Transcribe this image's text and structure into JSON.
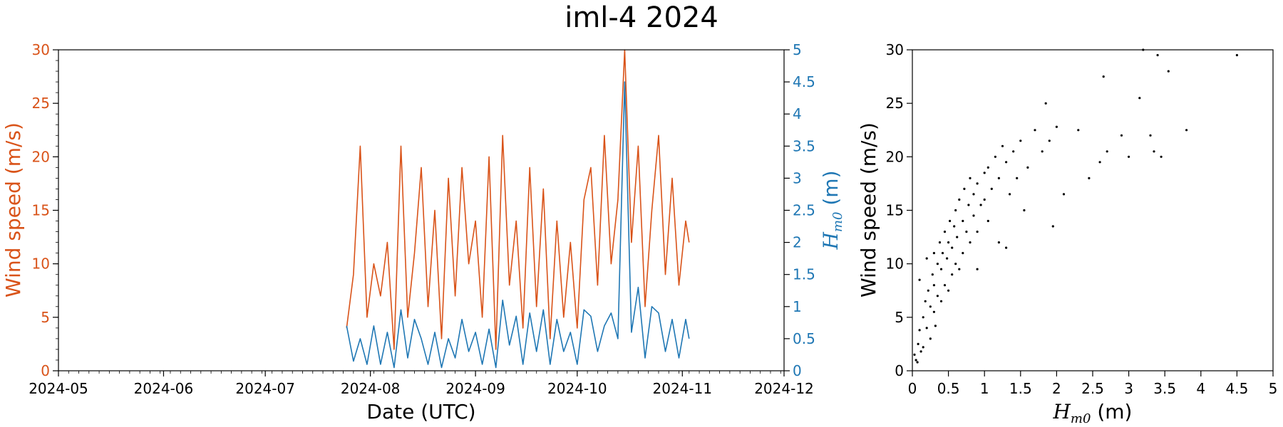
{
  "figure": {
    "title": "iml-4 2024"
  },
  "colors": {
    "wind": "#d95319",
    "hm0": "#1f77b4",
    "scatter": "#000000",
    "axes": "#000000"
  },
  "chart_data": [
    {
      "type": "line",
      "xlabel": "Date (UTC)",
      "ylabel": "Wind speed (m/s)",
      "y2label": "H_m0 (m)",
      "xlim": [
        "2024-05-01",
        "2024-12-01"
      ],
      "x_ticks": [
        "2024-05",
        "2024-06",
        "2024-07",
        "2024-08",
        "2024-09",
        "2024-10",
        "2024-11",
        "2024-12"
      ],
      "ylim": [
        0,
        30
      ],
      "y_ticks": [
        "0",
        "5",
        "10",
        "15",
        "20",
        "25",
        "30"
      ],
      "y2lim": [
        0,
        5
      ],
      "y2_ticks": [
        "0",
        "0.5",
        "1",
        "1.5",
        "2",
        "2.5",
        "3",
        "3.5",
        "4",
        "4.5",
        "5"
      ],
      "series": [
        {
          "axis": "left",
          "color": "#d95319",
          "points": [
            [
              "2024-07-25",
              4
            ],
            [
              "2024-07-27",
              9
            ],
            [
              "2024-07-29",
              21
            ],
            [
              "2024-07-31",
              5
            ],
            [
              "2024-08-02",
              10
            ],
            [
              "2024-08-04",
              7
            ],
            [
              "2024-08-06",
              12
            ],
            [
              "2024-08-08",
              2
            ],
            [
              "2024-08-10",
              21
            ],
            [
              "2024-08-12",
              5
            ],
            [
              "2024-08-14",
              11
            ],
            [
              "2024-08-16",
              19
            ],
            [
              "2024-08-18",
              6
            ],
            [
              "2024-08-20",
              15
            ],
            [
              "2024-08-22",
              3
            ],
            [
              "2024-08-24",
              18
            ],
            [
              "2024-08-26",
              7
            ],
            [
              "2024-08-28",
              19
            ],
            [
              "2024-08-30",
              10
            ],
            [
              "2024-09-01",
              14
            ],
            [
              "2024-09-03",
              5
            ],
            [
              "2024-09-05",
              20
            ],
            [
              "2024-09-07",
              2
            ],
            [
              "2024-09-09",
              22
            ],
            [
              "2024-09-11",
              8
            ],
            [
              "2024-09-13",
              14
            ],
            [
              "2024-09-15",
              4
            ],
            [
              "2024-09-17",
              19
            ],
            [
              "2024-09-19",
              6
            ],
            [
              "2024-09-21",
              17
            ],
            [
              "2024-09-23",
              3
            ],
            [
              "2024-09-25",
              14
            ],
            [
              "2024-09-27",
              5
            ],
            [
              "2024-09-29",
              12
            ],
            [
              "2024-10-01",
              4
            ],
            [
              "2024-10-03",
              16
            ],
            [
              "2024-10-05",
              19
            ],
            [
              "2024-10-07",
              8
            ],
            [
              "2024-10-09",
              22
            ],
            [
              "2024-10-11",
              10
            ],
            [
              "2024-10-13",
              16
            ],
            [
              "2024-10-15",
              30
            ],
            [
              "2024-10-17",
              12
            ],
            [
              "2024-10-19",
              21
            ],
            [
              "2024-10-21",
              6
            ],
            [
              "2024-10-23",
              15
            ],
            [
              "2024-10-25",
              22
            ],
            [
              "2024-10-27",
              9
            ],
            [
              "2024-10-29",
              18
            ],
            [
              "2024-10-31",
              8
            ],
            [
              "2024-11-02",
              14
            ],
            [
              "2024-11-03",
              12
            ]
          ]
        },
        {
          "axis": "right",
          "color": "#1f77b4",
          "points": [
            [
              "2024-07-25",
              0.7
            ],
            [
              "2024-07-27",
              0.15
            ],
            [
              "2024-07-29",
              0.5
            ],
            [
              "2024-07-31",
              0.1
            ],
            [
              "2024-08-02",
              0.7
            ],
            [
              "2024-08-04",
              0.1
            ],
            [
              "2024-08-06",
              0.6
            ],
            [
              "2024-08-08",
              0.05
            ],
            [
              "2024-08-10",
              0.95
            ],
            [
              "2024-08-12",
              0.2
            ],
            [
              "2024-08-14",
              0.8
            ],
            [
              "2024-08-16",
              0.5
            ],
            [
              "2024-08-18",
              0.1
            ],
            [
              "2024-08-20",
              0.6
            ],
            [
              "2024-08-22",
              0.05
            ],
            [
              "2024-08-24",
              0.5
            ],
            [
              "2024-08-26",
              0.2
            ],
            [
              "2024-08-28",
              0.8
            ],
            [
              "2024-08-30",
              0.3
            ],
            [
              "2024-09-01",
              0.6
            ],
            [
              "2024-09-03",
              0.1
            ],
            [
              "2024-09-05",
              0.65
            ],
            [
              "2024-09-07",
              0.05
            ],
            [
              "2024-09-09",
              1.1
            ],
            [
              "2024-09-11",
              0.4
            ],
            [
              "2024-09-13",
              0.85
            ],
            [
              "2024-09-15",
              0.1
            ],
            [
              "2024-09-17",
              0.9
            ],
            [
              "2024-09-19",
              0.3
            ],
            [
              "2024-09-21",
              0.95
            ],
            [
              "2024-09-23",
              0.1
            ],
            [
              "2024-09-25",
              0.8
            ],
            [
              "2024-09-27",
              0.3
            ],
            [
              "2024-09-29",
              0.6
            ],
            [
              "2024-10-01",
              0.1
            ],
            [
              "2024-10-03",
              0.95
            ],
            [
              "2024-10-05",
              0.85
            ],
            [
              "2024-10-07",
              0.3
            ],
            [
              "2024-10-09",
              0.7
            ],
            [
              "2024-10-11",
              0.9
            ],
            [
              "2024-10-13",
              0.5
            ],
            [
              "2024-10-15",
              4.5
            ],
            [
              "2024-10-17",
              0.6
            ],
            [
              "2024-10-19",
              1.3
            ],
            [
              "2024-10-21",
              0.2
            ],
            [
              "2024-10-23",
              1.0
            ],
            [
              "2024-10-25",
              0.9
            ],
            [
              "2024-10-27",
              0.3
            ],
            [
              "2024-10-29",
              0.8
            ],
            [
              "2024-10-31",
              0.2
            ],
            [
              "2024-11-02",
              0.8
            ],
            [
              "2024-11-03",
              0.5
            ]
          ]
        }
      ]
    },
    {
      "type": "scatter",
      "xlabel": "H_m0 (m)",
      "ylabel": "Wind speed (m/s)",
      "xlim": [
        0,
        5
      ],
      "x_ticks": [
        "0",
        "0.5",
        "1",
        "1.5",
        "2",
        "2.5",
        "3",
        "3.5",
        "4",
        "4.5",
        "5"
      ],
      "ylim": [
        0,
        30
      ],
      "y_ticks": [
        "0",
        "5",
        "10",
        "15",
        "20",
        "25",
        "30"
      ],
      "points": [
        [
          0.05,
          1.0
        ],
        [
          0.08,
          2.5
        ],
        [
          0.1,
          3.8
        ],
        [
          0.12,
          1.8
        ],
        [
          0.15,
          5.0
        ],
        [
          0.15,
          2.2
        ],
        [
          0.18,
          6.5
        ],
        [
          0.2,
          4.0
        ],
        [
          0.22,
          7.5
        ],
        [
          0.25,
          3.0
        ],
        [
          0.25,
          6.0
        ],
        [
          0.28,
          9.0
        ],
        [
          0.3,
          5.5
        ],
        [
          0.3,
          8.0
        ],
        [
          0.32,
          4.2
        ],
        [
          0.35,
          10.0
        ],
        [
          0.35,
          7.0
        ],
        [
          0.38,
          12.0
        ],
        [
          0.4,
          6.5
        ],
        [
          0.4,
          9.5
        ],
        [
          0.42,
          11.0
        ],
        [
          0.45,
          8.0
        ],
        [
          0.45,
          13.0
        ],
        [
          0.48,
          10.5
        ],
        [
          0.5,
          12.0
        ],
        [
          0.5,
          7.5
        ],
        [
          0.52,
          14.0
        ],
        [
          0.55,
          9.0
        ],
        [
          0.55,
          11.5
        ],
        [
          0.58,
          13.5
        ],
        [
          0.6,
          10.0
        ],
        [
          0.6,
          15.0
        ],
        [
          0.62,
          12.5
        ],
        [
          0.65,
          16.0
        ],
        [
          0.65,
          9.5
        ],
        [
          0.7,
          14.0
        ],
        [
          0.7,
          11.0
        ],
        [
          0.72,
          17.0
        ],
        [
          0.75,
          13.0
        ],
        [
          0.78,
          15.5
        ],
        [
          0.8,
          12.0
        ],
        [
          0.8,
          18.0
        ],
        [
          0.85,
          14.5
        ],
        [
          0.85,
          16.5
        ],
        [
          0.9,
          17.5
        ],
        [
          0.9,
          13.0
        ],
        [
          0.95,
          15.5
        ],
        [
          1.0,
          18.5
        ],
        [
          1.0,
          16.0
        ],
        [
          1.05,
          14.0
        ],
        [
          1.05,
          19.0
        ],
        [
          1.1,
          17.0
        ],
        [
          1.15,
          20.0
        ],
        [
          1.2,
          18.0
        ],
        [
          1.25,
          21.0
        ],
        [
          1.3,
          19.5
        ],
        [
          1.35,
          16.5
        ],
        [
          1.4,
          20.5
        ],
        [
          1.45,
          18.0
        ],
        [
          1.5,
          21.5
        ],
        [
          1.6,
          19.0
        ],
        [
          1.7,
          22.5
        ],
        [
          1.8,
          20.5
        ],
        [
          1.85,
          25.0
        ],
        [
          1.9,
          21.5
        ],
        [
          2.0,
          22.8
        ],
        [
          2.1,
          16.5
        ],
        [
          2.3,
          22.5
        ],
        [
          2.45,
          18.0
        ],
        [
          2.6,
          19.5
        ],
        [
          2.65,
          27.5
        ],
        [
          2.7,
          20.5
        ],
        [
          2.9,
          22.0
        ],
        [
          3.0,
          20.0
        ],
        [
          3.15,
          25.5
        ],
        [
          3.2,
          30.0
        ],
        [
          3.3,
          22.0
        ],
        [
          3.35,
          20.5
        ],
        [
          3.4,
          29.5
        ],
        [
          3.45,
          20.0
        ],
        [
          3.55,
          28.0
        ],
        [
          3.8,
          22.5
        ],
        [
          4.5,
          29.5
        ],
        [
          0.03,
          1.5
        ],
        [
          0.07,
          0.8
        ],
        [
          0.2,
          10.5
        ],
        [
          0.3,
          11.0
        ],
        [
          0.1,
          8.5
        ],
        [
          0.9,
          9.5
        ],
        [
          1.2,
          12.0
        ],
        [
          1.3,
          11.5
        ],
        [
          1.55,
          15.0
        ],
        [
          1.95,
          13.5
        ]
      ]
    }
  ]
}
